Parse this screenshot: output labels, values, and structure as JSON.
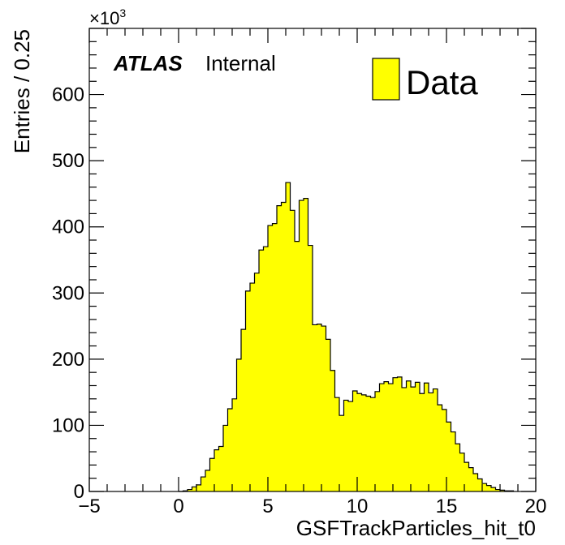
{
  "chart_data": {
    "type": "bar",
    "histogram": true,
    "xlabel": "GSFTrackParticles_hit_t0",
    "ylabel": "Entries / 0.25",
    "y_multiplier": "×10",
    "y_multiplier_exp": "3",
    "xlim": [
      -5,
      20
    ],
    "ylim": [
      0,
      700
    ],
    "x_ticks": [
      "−5",
      "0",
      "5",
      "10",
      "15",
      "20"
    ],
    "y_ticks": [
      "0",
      "100",
      "200",
      "300",
      "400",
      "500",
      "600"
    ],
    "atlas_label": "ATLAS",
    "atlas_sublabel": "Internal",
    "legend": {
      "position": "top-right",
      "entries": [
        "Data"
      ]
    },
    "bin_width": 0.25,
    "bin_start": 0,
    "series": [
      {
        "name": "Data",
        "fill": "#ffff00",
        "values": [
          0,
          1,
          3,
          7,
          10,
          22,
          32,
          50,
          63,
          68,
          100,
          125,
          140,
          200,
          245,
          303,
          315,
          330,
          365,
          370,
          402,
          405,
          432,
          437,
          467,
          425,
          378,
          440,
          443,
          372,
          252,
          253,
          250,
          230,
          183,
          142,
          115,
          138,
          136,
          152,
          148,
          146,
          144,
          142,
          151,
          163,
          166,
          163,
          172,
          173,
          157,
          167,
          158,
          165,
          148,
          164,
          149,
          155,
          131,
          124,
          105,
          90,
          72,
          58,
          44,
          36,
          27,
          19,
          12,
          9,
          6,
          3,
          2,
          1,
          1
        ]
      }
    ]
  }
}
